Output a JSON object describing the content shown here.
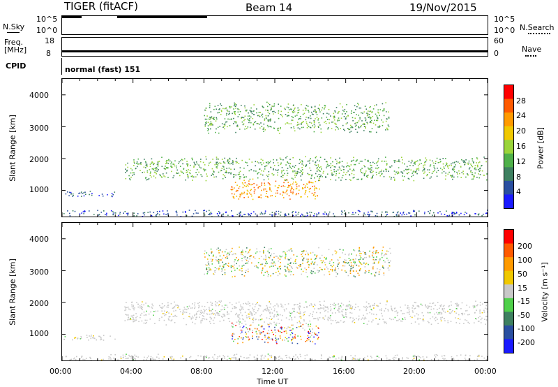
{
  "header": {
    "radar": "TIGER (fitACF)",
    "beam": "Beam 14",
    "date": "19/Nov/2015"
  },
  "nsky_panel": {
    "left_label": "N.Sky",
    "right_label": "N.Search",
    "left_ticks": [
      "10^5",
      "10^0"
    ],
    "right_ticks": [
      "10^5",
      "10^0"
    ],
    "left_series_desc": "black trace near top",
    "segments": [
      [
        0.0,
        1.0
      ],
      [
        2.8,
        7.4
      ]
    ]
  },
  "freq_panel": {
    "left_label_1": "Freq.",
    "left_label_2": "[MHz]",
    "right_label": "Nave",
    "left_ticks": [
      "18",
      "8"
    ],
    "right_ticks": [
      "60",
      "0"
    ],
    "freq_value_mhz": 10
  },
  "cpid_panel": {
    "label": "CPID",
    "value": "normal (fast) 151"
  },
  "x_axis": {
    "label": "Time UT",
    "ticks": [
      "00:00",
      "04:00",
      "08:00",
      "12:00",
      "16:00",
      "20:00",
      "00:00"
    ]
  },
  "power_panel": {
    "ylabel": "Slant Range [km]",
    "yticks": [
      "4000",
      "3000",
      "2000",
      "1000"
    ],
    "colorbar_label": "Power [dB]",
    "colorbar_ticks": [
      "28",
      "24",
      "20",
      "16",
      "12",
      "8",
      "4"
    ],
    "colors": [
      "#1a1aff",
      "#2a4fa0",
      "#3e8060",
      "#4fb04a",
      "#9ad43a",
      "#f0c800",
      "#ff9a00",
      "#ff5a00",
      "#ff0000"
    ]
  },
  "velocity_panel": {
    "ylabel": "Slant Range [km]",
    "yticks": [
      "4000",
      "3000",
      "2000",
      "1000"
    ],
    "colorbar_label": "Velocity [m s⁻¹]",
    "colorbar_ticks": [
      "200",
      "100",
      "50",
      "15",
      "-15",
      "-50",
      "-100",
      "-200"
    ],
    "colors": [
      "#1a1aff",
      "#2a4fa0",
      "#3e8060",
      "#4fd04a",
      "#c8c8c8",
      "#f0c800",
      "#ff9a00",
      "#ff5a00",
      "#ff0000"
    ]
  },
  "chart_data": {
    "type": "heatmap",
    "title": "TIGER (fitACF)  Beam 14  19/Nov/2015",
    "xlabel": "Time UT",
    "ylabel": "Slant Range [km]",
    "xlim_hours": [
      0,
      24
    ],
    "ylim_km": [
      180,
      4500
    ],
    "x_ticks_hours": [
      0,
      4,
      8,
      12,
      16,
      20,
      24
    ],
    "y_ticks_km": [
      1000,
      2000,
      3000,
      4000
    ],
    "power_colorbar_db": [
      4,
      8,
      12,
      16,
      20,
      24,
      28
    ],
    "velocity_colorbar_ms": [
      -200,
      -100,
      -50,
      -15,
      15,
      50,
      100,
      200
    ],
    "echo_regions": [
      {
        "name": "main band",
        "t_start": 3.5,
        "t_end": 24,
        "range_km": [
          1300,
          2100
        ],
        "power_db": 14,
        "velocity": "near zero (gray)"
      },
      {
        "name": "lower band",
        "t_start": 0,
        "t_end": 3,
        "range_km": [
          800,
          1000
        ],
        "power_db": 8,
        "velocity": "near zero (gray)"
      },
      {
        "name": "enhanced region",
        "t_start": 9.5,
        "t_end": 14.5,
        "range_km": [
          700,
          1400
        ],
        "power_db": 22,
        "velocity": "strong positive and negative"
      },
      {
        "name": "high range echoes",
        "t_start": 8,
        "t_end": 18.5,
        "range_km": [
          2800,
          3800
        ],
        "power_db": 12,
        "velocity": "mixed"
      },
      {
        "name": "ground scatter near bottom",
        "t_start": 0,
        "t_end": 24,
        "range_km": [
          180,
          400
        ],
        "power_db": 6,
        "velocity": "low"
      }
    ]
  }
}
